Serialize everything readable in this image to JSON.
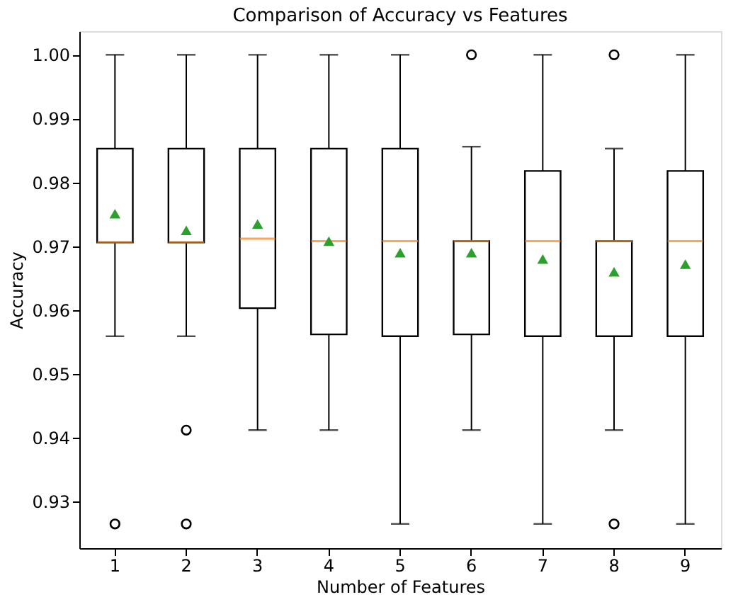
{
  "chart_data": {
    "type": "box",
    "title": "Comparison of  Accuracy vs Features",
    "xlabel": "Number of Features",
    "ylabel": "Accuracy",
    "categories": [
      "1",
      "2",
      "3",
      "4",
      "5",
      "6",
      "7",
      "8",
      "9"
    ],
    "series": [
      {
        "color": "#000000",
        "boxes": [
          {
            "low": 0.9559,
            "q1": 0.9706,
            "median": 0.9706,
            "q3": 0.9853,
            "high": 1.0,
            "mean": 0.9751,
            "outliers": [
              0.9265
            ]
          },
          {
            "low": 0.9559,
            "q1": 0.9706,
            "median": 0.9706,
            "q3": 0.9853,
            "high": 1.0,
            "mean": 0.9725,
            "outliers": [
              0.9412,
              0.9265
            ]
          },
          {
            "low": 0.9412,
            "q1": 0.9603,
            "median": 0.9712,
            "q3": 0.9853,
            "high": 1.0,
            "mean": 0.9735
          },
          {
            "low": 0.9412,
            "q1": 0.9562,
            "median": 0.9708,
            "q3": 0.9853,
            "high": 1.0,
            "mean": 0.9708
          },
          {
            "low": 0.9265,
            "q1": 0.9559,
            "median": 0.9708,
            "q3": 0.9853,
            "high": 1.0,
            "mean": 0.969
          },
          {
            "low": 0.9412,
            "q1": 0.9562,
            "median": 0.9708,
            "q3": 0.9708,
            "high": 0.9856,
            "mean": 0.969,
            "outliers": [
              1.0
            ]
          },
          {
            "low": 0.9265,
            "q1": 0.9559,
            "median": 0.9708,
            "q3": 0.9818,
            "high": 1.0,
            "mean": 0.968
          },
          {
            "low": 0.9412,
            "q1": 0.9559,
            "median": 0.9708,
            "q3": 0.9708,
            "high": 0.9853,
            "mean": 0.966,
            "outliers": [
              1.0,
              0.9265
            ]
          },
          {
            "low": 0.9265,
            "q1": 0.9559,
            "median": 0.9708,
            "q3": 0.9818,
            "high": 1.0,
            "mean": 0.9672
          }
        ]
      }
    ],
    "ylim": [
      0.9227,
      1.0037
    ],
    "yticks": [
      0.93,
      0.94,
      0.95,
      0.96,
      0.97,
      0.98,
      0.99,
      {
        "value": 1.0,
        "label": "1.00"
      }
    ],
    "marker": "triangle",
    "grid": false
  }
}
